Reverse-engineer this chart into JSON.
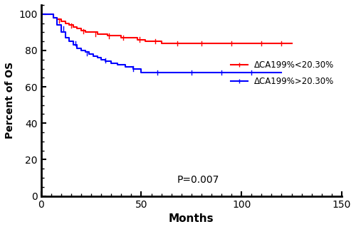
{
  "title": "",
  "xlabel": "Months",
  "ylabel": "Percent of OS",
  "xlim": [
    0,
    150
  ],
  "ylim": [
    0,
    105
  ],
  "xticks": [
    0,
    50,
    100,
    150
  ],
  "yticks": [
    0,
    20,
    40,
    60,
    80,
    100
  ],
  "p_value_text": "P=0.007",
  "p_value_x": 68,
  "p_value_y": 6,
  "legend_label_red": "ΔCA199%<20.30%",
  "legend_label_blue": "ΔCA199%>20.30%",
  "red_color": "#FF0000",
  "blue_color": "#0000FF",
  "line_width": 1.5,
  "red_steps_x": [
    0,
    4,
    6,
    8,
    10,
    12,
    14,
    16,
    18,
    20,
    22,
    25,
    28,
    30,
    33,
    36,
    40,
    44,
    48,
    52,
    56,
    60,
    65,
    70,
    90,
    95,
    120,
    125
  ],
  "red_steps_y": [
    100,
    100,
    98,
    97,
    96,
    95,
    94,
    93,
    92,
    91,
    90,
    90,
    89,
    89,
    88,
    88,
    87,
    87,
    86,
    85,
    85,
    84,
    84,
    84,
    84,
    84,
    84,
    84
  ],
  "blue_steps_x": [
    0,
    4,
    6,
    8,
    10,
    12,
    14,
    16,
    18,
    20,
    22,
    24,
    26,
    28,
    30,
    32,
    35,
    38,
    42,
    46,
    50,
    55,
    65,
    75,
    90,
    120
  ],
  "blue_steps_y": [
    100,
    100,
    98,
    94,
    90,
    87,
    85,
    83,
    81,
    80,
    79,
    78,
    77,
    76,
    75,
    74,
    73,
    72,
    71,
    70,
    68,
    68,
    68,
    68,
    68,
    68
  ],
  "red_censor_x": [
    9,
    15,
    21,
    27,
    34,
    41,
    49,
    57,
    68,
    80,
    95,
    110,
    120
  ],
  "red_censor_y": [
    96.5,
    93.5,
    90.5,
    89,
    88,
    87,
    86,
    85,
    84,
    84,
    84,
    84,
    84
  ],
  "blue_censor_x": [
    11,
    17,
    23,
    32,
    46,
    58,
    75,
    90,
    105
  ],
  "blue_censor_y": [
    92,
    84,
    78.5,
    74.5,
    70,
    68,
    68,
    68,
    68
  ],
  "figsize": [
    5.0,
    3.22
  ],
  "dpi": 100
}
